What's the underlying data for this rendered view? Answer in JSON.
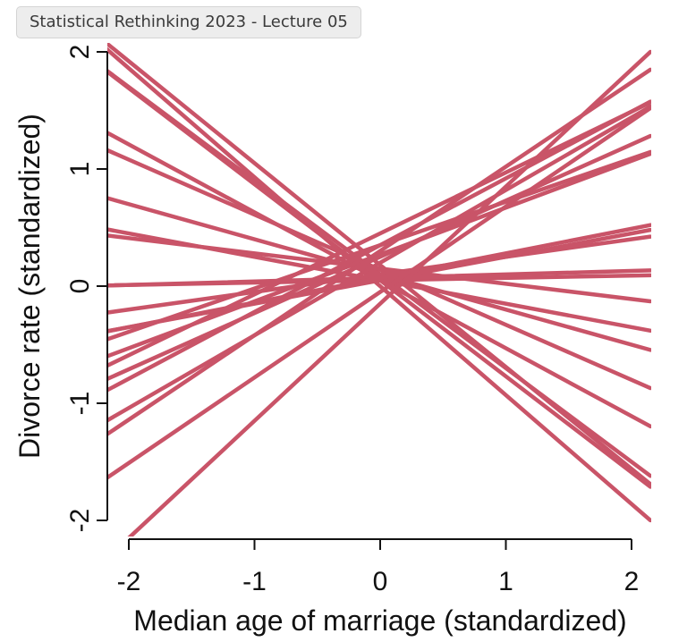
{
  "window": {
    "title": "Statistical Rethinking 2023 - Lecture 05"
  },
  "chart_data": {
    "type": "line",
    "xlabel": "Median age of marriage (standardized)",
    "ylabel": "Divorce rate (standardized)",
    "xlim": [
      -2.2,
      2.15
    ],
    "ylim": [
      -2.1,
      2.1
    ],
    "xticks": [
      "-2",
      "-1",
      "0",
      "1",
      "2"
    ],
    "yticks": [
      "-2",
      "-1",
      "0",
      "1",
      "2"
    ],
    "line_color": "#c95468",
    "grid": false,
    "lines": [
      {
        "intercept": 0.18,
        "slope": -0.87
      },
      {
        "intercept": 0.1,
        "slope": -0.8
      },
      {
        "intercept": 0.05,
        "slope": -0.82
      },
      {
        "intercept": 0.0,
        "slope": -0.93
      },
      {
        "intercept": 0.05,
        "slope": -0.58
      },
      {
        "intercept": 0.14,
        "slope": -0.47
      },
      {
        "intercept": 0.05,
        "slope": -0.2
      },
      {
        "intercept": 0.15,
        "slope": -0.13
      },
      {
        "intercept": 0.1,
        "slope": -0.3
      },
      {
        "intercept": 0.05,
        "slope": 0.02
      },
      {
        "intercept": 0.07,
        "slope": 0.03
      },
      {
        "intercept": 0.1,
        "slope": 0.15
      },
      {
        "intercept": 0.05,
        "slope": 0.2
      },
      {
        "intercept": 0.07,
        "slope": 0.21
      },
      {
        "intercept": 0.27,
        "slope": 0.4
      },
      {
        "intercept": 0.35,
        "slope": 0.37
      },
      {
        "intercept": 0.45,
        "slope": 0.52
      },
      {
        "intercept": 0.35,
        "slope": 0.57
      },
      {
        "intercept": 0.3,
        "slope": 0.72
      },
      {
        "intercept": -0.05,
        "slope": 0.73
      },
      {
        "intercept": 0.2,
        "slope": 0.62
      },
      {
        "intercept": 0.25,
        "slope": 0.48
      },
      {
        "intercept": -0.15,
        "slope": 1.0
      }
    ]
  }
}
